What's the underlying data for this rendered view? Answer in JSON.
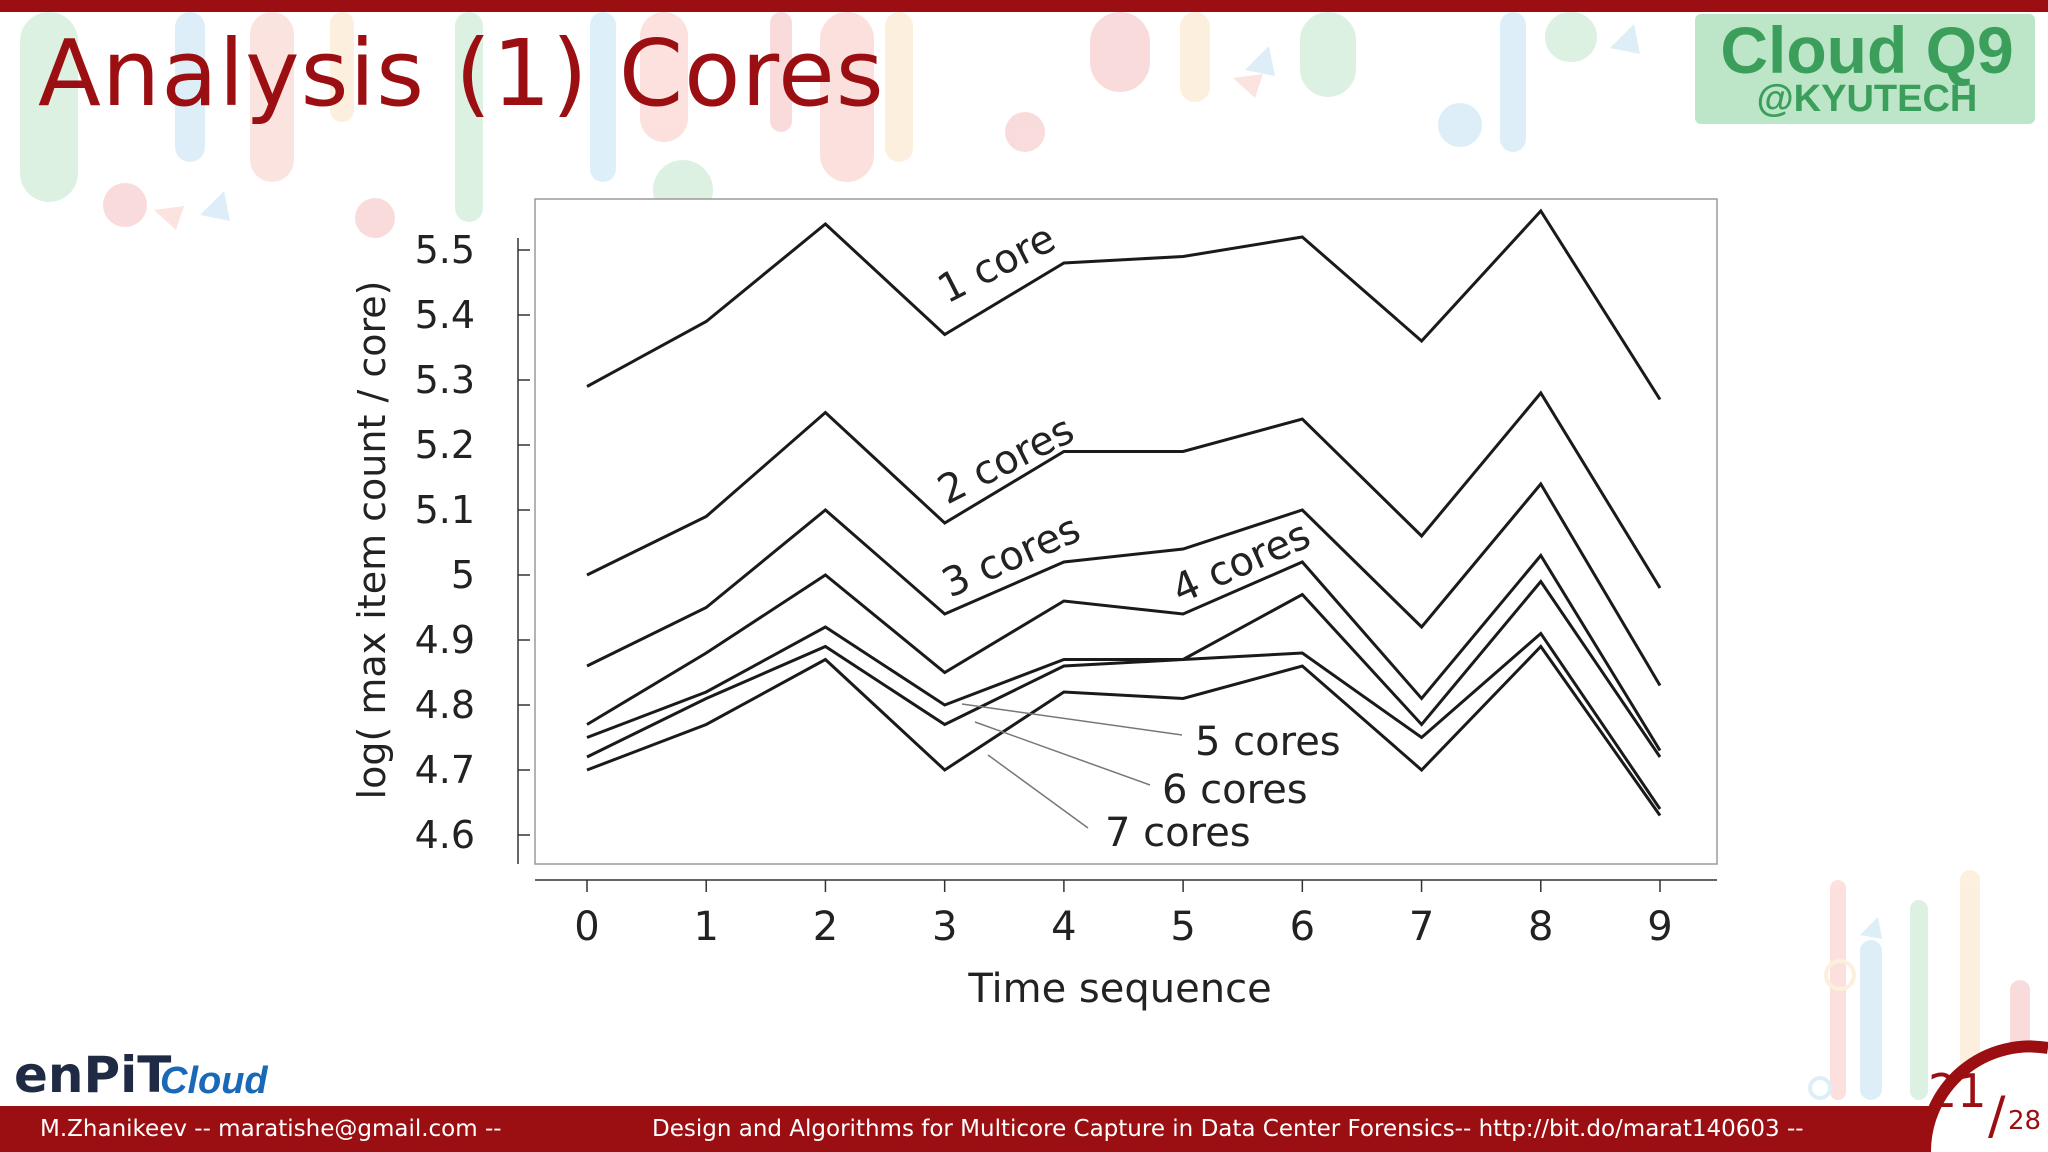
{
  "slide": {
    "title": "Analysis (1) Cores",
    "logo_main": "Cloud Q9",
    "logo_sub": "@KYUTECH",
    "brand": "enPiT",
    "brand_cloud": "Cloud",
    "footer_left": "M.Zhanikeev -- maratishe@gmail.com --",
    "footer_center": "Design and Algorithms for Multicore Capture in Data Center Forensics-- http://bit.do/marat140603 --",
    "page_number": "21",
    "page_total": "28",
    "colors": {
      "accent": "#9b0f12",
      "logo": "#3b9e5b",
      "brand_cloud": "#1a69b8"
    }
  },
  "chart_data": {
    "type": "line",
    "title": "",
    "xlabel": "Time sequence",
    "ylabel": "log( max item count / core)",
    "x": [
      0,
      1,
      2,
      3,
      4,
      5,
      6,
      7,
      8,
      9
    ],
    "xticks": [
      "0",
      "1",
      "2",
      "3",
      "4",
      "5",
      "6",
      "7",
      "8",
      "9"
    ],
    "yticks": [
      "5.5",
      "5.4",
      "5.3",
      "5.2",
      "5.1",
      "5",
      "4.9",
      "4.8",
      "4.7",
      "4.6"
    ],
    "ylim": [
      4.6,
      5.5
    ],
    "grid": false,
    "legend": "inline labels",
    "series": [
      {
        "name": "1 core",
        "values": [
          5.29,
          5.39,
          5.54,
          5.37,
          5.48,
          5.49,
          5.52,
          5.36,
          5.56,
          5.27
        ]
      },
      {
        "name": "2 cores",
        "values": [
          5.0,
          5.09,
          5.25,
          5.08,
          5.19,
          5.19,
          5.24,
          5.06,
          5.28,
          4.98
        ]
      },
      {
        "name": "3 cores",
        "values": [
          4.86,
          4.95,
          5.1,
          4.94,
          5.02,
          5.04,
          5.1,
          4.92,
          5.14,
          4.83
        ]
      },
      {
        "name": "4 cores",
        "values": [
          4.77,
          4.88,
          5.0,
          4.85,
          4.96,
          4.94,
          5.02,
          4.81,
          5.03,
          4.73
        ]
      },
      {
        "name": "5 cores",
        "values": [
          4.75,
          4.82,
          4.92,
          4.8,
          4.87,
          4.87,
          4.97,
          4.77,
          4.99,
          4.72
        ]
      },
      {
        "name": "6 cores",
        "values": [
          4.72,
          4.81,
          4.89,
          4.77,
          4.86,
          4.87,
          4.88,
          4.75,
          4.91,
          4.64
        ]
      },
      {
        "name": "7 cores",
        "values": [
          4.7,
          4.77,
          4.87,
          4.7,
          4.82,
          4.81,
          4.86,
          4.7,
          4.89,
          4.63
        ]
      }
    ]
  }
}
